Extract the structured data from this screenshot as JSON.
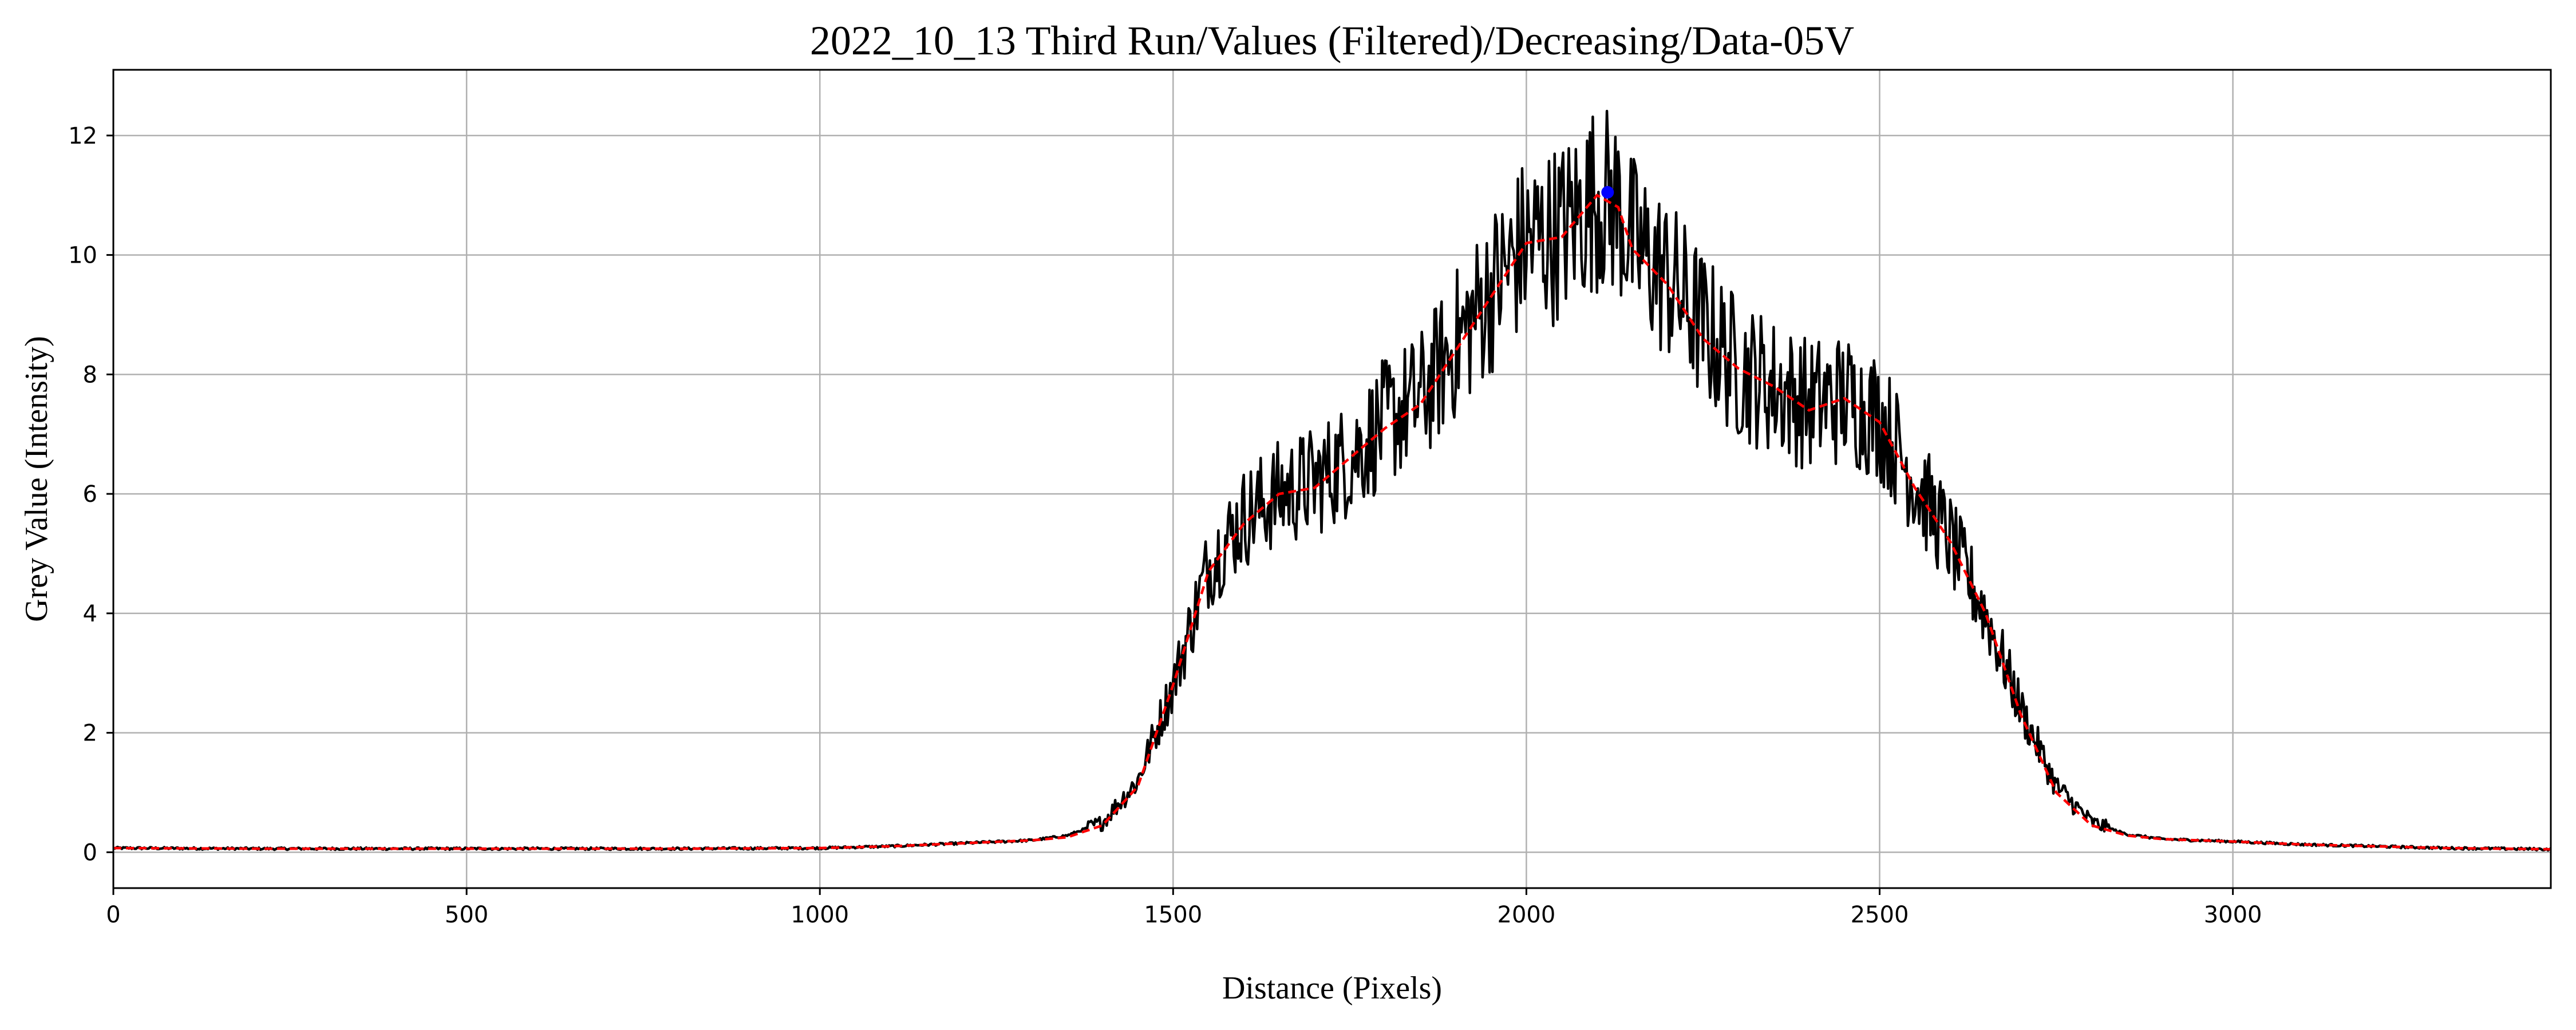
{
  "chart_data": {
    "type": "line",
    "title": "2022_10_13 Third Run/Values (Filtered)/Decreasing/Data-05V",
    "xlabel": "Distance (Pixels)",
    "ylabel": "Grey Value (Intensity)",
    "xlim": [
      0,
      3450
    ],
    "ylim": [
      -0.6,
      13.1
    ],
    "xticks": [
      0,
      500,
      1000,
      1500,
      2000,
      2500,
      3000
    ],
    "yticks": [
      0,
      2,
      4,
      6,
      8,
      10,
      12
    ],
    "grid": true,
    "series": [
      {
        "color": "#000000",
        "style": "solid",
        "noisy": true,
        "x": [
          0,
          200,
          400,
          600,
          800,
          1000,
          1100,
          1200,
          1300,
          1350,
          1400,
          1450,
          1500,
          1550,
          1600,
          1650,
          1700,
          1750,
          1800,
          1850,
          1900,
          1950,
          2000,
          2050,
          2100,
          2130,
          2150,
          2200,
          2250,
          2300,
          2350,
          2400,
          2450,
          2500,
          2550,
          2600,
          2650,
          2700,
          2750,
          2800,
          2850,
          2900,
          3000,
          3100,
          3200,
          3300,
          3450
        ],
        "values": [
          0.07,
          0.06,
          0.06,
          0.06,
          0.06,
          0.07,
          0.1,
          0.15,
          0.2,
          0.28,
          0.5,
          1.2,
          2.8,
          4.8,
          5.6,
          6.0,
          6.2,
          6.6,
          7.2,
          7.6,
          8.5,
          9.4,
          10.2,
          10.4,
          11.0,
          10.8,
          10.2,
          9.6,
          8.8,
          8.1,
          7.8,
          7.5,
          7.6,
          7.3,
          6.2,
          5.2,
          4.0,
          2.4,
          1.1,
          0.5,
          0.3,
          0.22,
          0.18,
          0.13,
          0.1,
          0.07,
          0.05
        ]
      },
      {
        "color": "#ff0000",
        "style": "dashed",
        "noisy": false,
        "x": [
          0,
          200,
          400,
          600,
          800,
          1000,
          1100,
          1200,
          1300,
          1350,
          1400,
          1450,
          1500,
          1550,
          1600,
          1650,
          1700,
          1750,
          1800,
          1850,
          1900,
          1950,
          2000,
          2050,
          2100,
          2130,
          2150,
          2200,
          2250,
          2300,
          2350,
          2400,
          2450,
          2500,
          2550,
          2600,
          2650,
          2700,
          2750,
          2800,
          2850,
          2900,
          3000,
          3100,
          3200,
          3300,
          3450
        ],
        "values": [
          0.07,
          0.06,
          0.06,
          0.06,
          0.06,
          0.07,
          0.1,
          0.15,
          0.2,
          0.25,
          0.45,
          1.1,
          2.8,
          4.7,
          5.5,
          6.0,
          6.1,
          6.6,
          7.1,
          7.5,
          8.4,
          9.3,
          10.2,
          10.3,
          11.0,
          10.8,
          10.1,
          9.5,
          8.6,
          8.1,
          7.8,
          7.4,
          7.6,
          7.2,
          6.1,
          5.2,
          4.0,
          2.3,
          1.0,
          0.45,
          0.28,
          0.22,
          0.18,
          0.13,
          0.1,
          0.07,
          0.05
        ]
      }
    ],
    "marker": {
      "x": 2115,
      "y": 11.05,
      "color": "#0000ff"
    }
  }
}
